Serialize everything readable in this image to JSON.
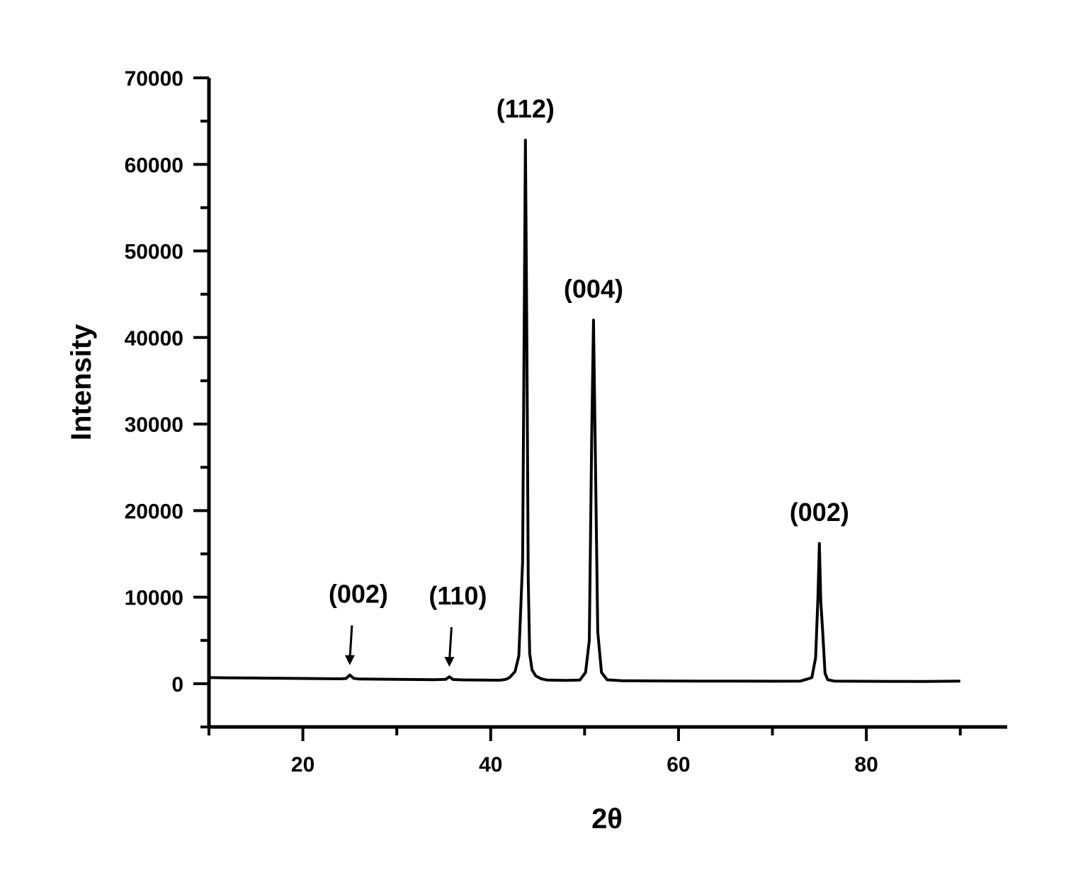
{
  "chart_data": {
    "type": "line",
    "title": "",
    "xlabel": "2θ",
    "ylabel": "Intensity",
    "xlim": [
      10,
      95
    ],
    "ylim": [
      -5000,
      70000
    ],
    "x_ticks": [
      20,
      40,
      60,
      80
    ],
    "y_ticks": [
      0,
      10000,
      20000,
      30000,
      40000,
      50000,
      60000,
      70000
    ],
    "grid": false,
    "legend": "none",
    "line_color": "#000000",
    "series": [
      {
        "x": [
          10,
          12,
          15,
          18,
          20,
          22,
          24,
          24.6,
          25.0,
          25.4,
          26,
          28,
          30,
          32,
          34,
          35.2,
          35.6,
          36.0,
          37,
          39,
          41,
          41.6,
          42,
          42.6,
          43.0,
          43.4,
          43.55,
          43.7,
          43.85,
          44.0,
          44.15,
          44.4,
          44.8,
          45.4,
          46,
          48,
          49.5,
          50.1,
          50.5,
          50.75,
          50.95,
          51.15,
          51.4,
          51.8,
          52.4,
          54,
          58,
          62,
          66,
          70,
          73,
          74.2,
          74.6,
          74.85,
          75.0,
          75.15,
          75.35,
          75.6,
          75.9,
          76.6,
          78,
          82,
          86,
          90
        ],
        "y": [
          700,
          680,
          650,
          620,
          600,
          580,
          560,
          600,
          1000,
          620,
          540,
          520,
          500,
          480,
          460,
          500,
          800,
          480,
          440,
          420,
          400,
          500,
          700,
          1400,
          3200,
          14000,
          38000,
          62800,
          40000,
          12000,
          3500,
          1600,
          900,
          550,
          420,
          380,
          420,
          1300,
          5000,
          28000,
          42000,
          26000,
          6000,
          1300,
          450,
          340,
          320,
          300,
          290,
          280,
          300,
          700,
          3000,
          10000,
          16200,
          9500,
          6000,
          1200,
          450,
          300,
          280,
          270,
          260,
          300
        ]
      }
    ],
    "annotations": [
      {
        "text": "(112)",
        "x": 43.7,
        "y": 62800,
        "arrow": false
      },
      {
        "text": "(004)",
        "x": 50.95,
        "y": 42000,
        "arrow": false
      },
      {
        "text": "(002)",
        "x": 75.0,
        "y": 16200,
        "arrow": false
      },
      {
        "text": "(002)",
        "x": 25.0,
        "y": 1000,
        "arrow": true
      },
      {
        "text": "(110)",
        "x": 35.6,
        "y": 800,
        "arrow": true
      }
    ]
  }
}
